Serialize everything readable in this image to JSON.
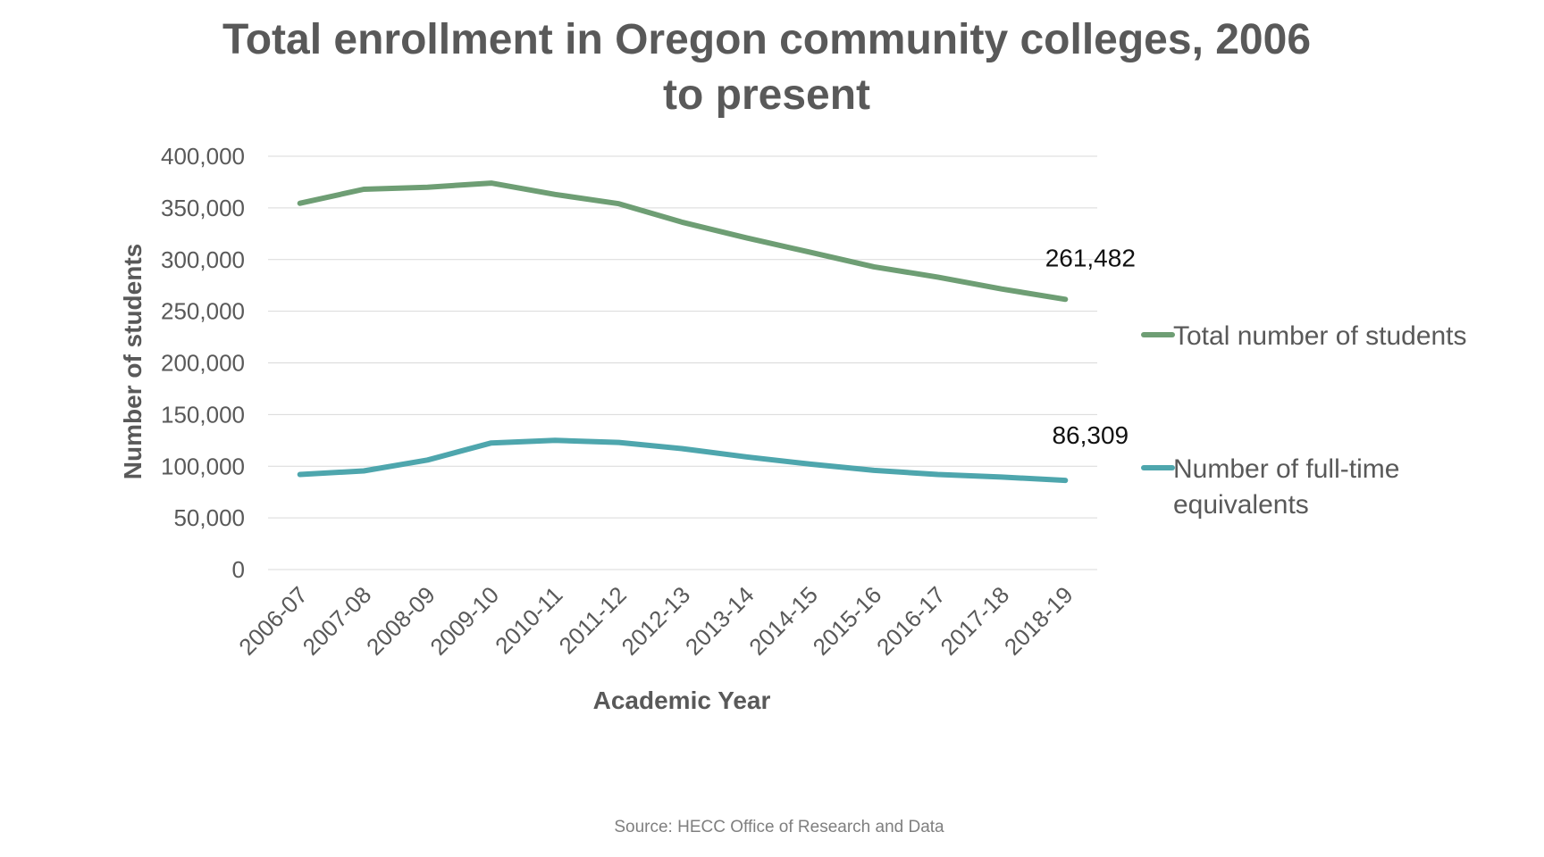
{
  "chart_data": {
    "type": "line",
    "title_lines": [
      "Total enrollment in Oregon community colleges, 2006",
      "to present"
    ],
    "xlabel": "Academic Year",
    "ylabel": "Number of students",
    "ylim": [
      0,
      400000
    ],
    "yticks": [
      0,
      50000,
      100000,
      150000,
      200000,
      250000,
      300000,
      350000,
      400000
    ],
    "ytick_labels": [
      "0",
      "50,000",
      "100,000",
      "150,000",
      "200,000",
      "250,000",
      "300,000",
      "350,000",
      "400,000"
    ],
    "categories": [
      "2006-07",
      "2007-08",
      "2008-09",
      "2009-10",
      "2010-11",
      "2011-12",
      "2012-13",
      "2013-14",
      "2014-15",
      "2015-16",
      "2016-17",
      "2017-18",
      "2018-19"
    ],
    "grid": true,
    "legend_position": "right",
    "series": [
      {
        "name": "Total number of students",
        "legend_lines": [
          "Total number of students"
        ],
        "color": "#6e9e74",
        "values": [
          354500,
          368000,
          370000,
          374000,
          363000,
          354000,
          336000,
          321000,
          307000,
          293000,
          283000,
          271500,
          261482
        ],
        "end_label": "261,482"
      },
      {
        "name": "Number of full-time equivalents",
        "legend_lines": [
          "Number of full-time",
          "equivalents"
        ],
        "color": "#4ea6ad",
        "values": [
          92000,
          95500,
          106000,
          122500,
          125000,
          123000,
          117000,
          109000,
          102000,
          96000,
          92000,
          89500,
          86309
        ],
        "end_label": "86,309"
      }
    ],
    "source": "Source: HECC Office of Research and Data"
  }
}
